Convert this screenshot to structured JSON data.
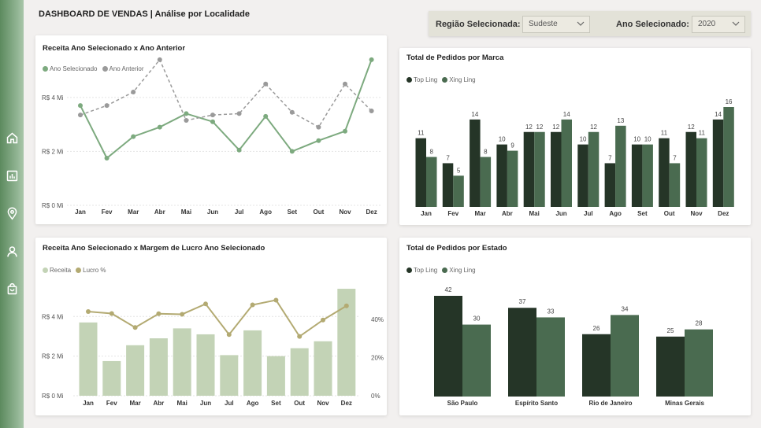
{
  "page": {
    "title": "DASHBOARD DE VENDAS | Análise por Localidade"
  },
  "filters": {
    "region_label": "Região Selecionada:",
    "region_value": "Sudeste",
    "year_label": "Ano Selecionado:",
    "year_value": "2020"
  },
  "nav": {
    "icons": [
      "home-icon",
      "bar-chart-icon",
      "location-pin-icon",
      "user-icon",
      "shopping-bag-icon"
    ]
  },
  "colors": {
    "accent_green": "#7daa7f",
    "grey": "#9a9a9a",
    "dark_green": "#253527",
    "mid_green": "#4a6b50",
    "light_green": "#c3d3b6",
    "gold": "#b3aa72"
  },
  "chart_data": [
    {
      "id": "revenue-vs-prev",
      "type": "line",
      "title": "Receita Ano Selecionado x Ano Anterior",
      "categories": [
        "Jan",
        "Fev",
        "Mar",
        "Abr",
        "Mai",
        "Jun",
        "Jul",
        "Ago",
        "Set",
        "Out",
        "Nov",
        "Dez"
      ],
      "y_ticks": [
        "R$ 0 Mi",
        "R$ 2 Mi",
        "R$ 4 Mi"
      ],
      "ylim": [
        0,
        5.6
      ],
      "series": [
        {
          "name": "Ano Selecionado",
          "style": "solid",
          "values": [
            3.7,
            1.75,
            2.55,
            2.9,
            3.4,
            3.1,
            2.05,
            3.3,
            2.0,
            2.4,
            2.75,
            5.4
          ]
        },
        {
          "name": "Ano Anterior",
          "style": "dashed",
          "values": [
            3.35,
            3.7,
            4.2,
            5.4,
            3.15,
            3.35,
            3.4,
            4.5,
            3.45,
            2.9,
            4.5,
            3.5
          ]
        }
      ]
    },
    {
      "id": "orders-by-brand",
      "type": "bar",
      "title": "Total de Pedidos por Marca",
      "categories": [
        "Jan",
        "Fev",
        "Mar",
        "Abr",
        "Mai",
        "Jun",
        "Jul",
        "Ago",
        "Set",
        "Out",
        "Nov",
        "Dez"
      ],
      "ylim": [
        0,
        16
      ],
      "series": [
        {
          "name": "Top Ling",
          "values": [
            11,
            7,
            14,
            10,
            12,
            12,
            10,
            7,
            10,
            11,
            12,
            14
          ]
        },
        {
          "name": "Xing Ling",
          "values": [
            8,
            5,
            8,
            9,
            12,
            14,
            12,
            13,
            10,
            7,
            11,
            16
          ]
        }
      ]
    },
    {
      "id": "revenue-vs-margin",
      "type": "bar",
      "title": "Receita Ano Selecionado x Margem de Lucro Ano Selecionado",
      "categories": [
        "Jan",
        "Fev",
        "Mar",
        "Abr",
        "Mai",
        "Jun",
        "Jul",
        "Ago",
        "Set",
        "Out",
        "Nov",
        "Dez"
      ],
      "y_ticks": [
        "R$ 0 Mi",
        "R$ 2 Mi",
        "R$ 4 Mi"
      ],
      "y2_ticks": [
        "0%",
        "20%",
        "40%"
      ],
      "ylim": [
        0,
        5.6
      ],
      "y2lim": [
        0,
        0.58
      ],
      "series": [
        {
          "name": "Receita",
          "kind": "bar",
          "values": [
            3.7,
            1.75,
            2.55,
            2.9,
            3.4,
            3.1,
            2.05,
            3.3,
            2.0,
            2.4,
            2.75,
            5.4
          ]
        },
        {
          "name": "Lucro %",
          "kind": "line",
          "values": [
            0.44,
            0.43,
            0.357,
            0.429,
            0.426,
            0.48,
            0.32,
            0.475,
            0.5,
            0.31,
            0.396,
            0.47
          ]
        }
      ]
    },
    {
      "id": "orders-by-state",
      "type": "bar",
      "title": "Total de Pedidos por Estado",
      "categories": [
        "São Paulo",
        "Espírito Santo",
        "Rio de Janeiro",
        "Minas Gerais"
      ],
      "ylim": [
        0,
        42
      ],
      "series": [
        {
          "name": "Top Ling",
          "values": [
            42,
            37,
            26,
            25
          ]
        },
        {
          "name": "Xing Ling",
          "values": [
            30,
            33,
            34,
            28
          ]
        }
      ]
    }
  ]
}
